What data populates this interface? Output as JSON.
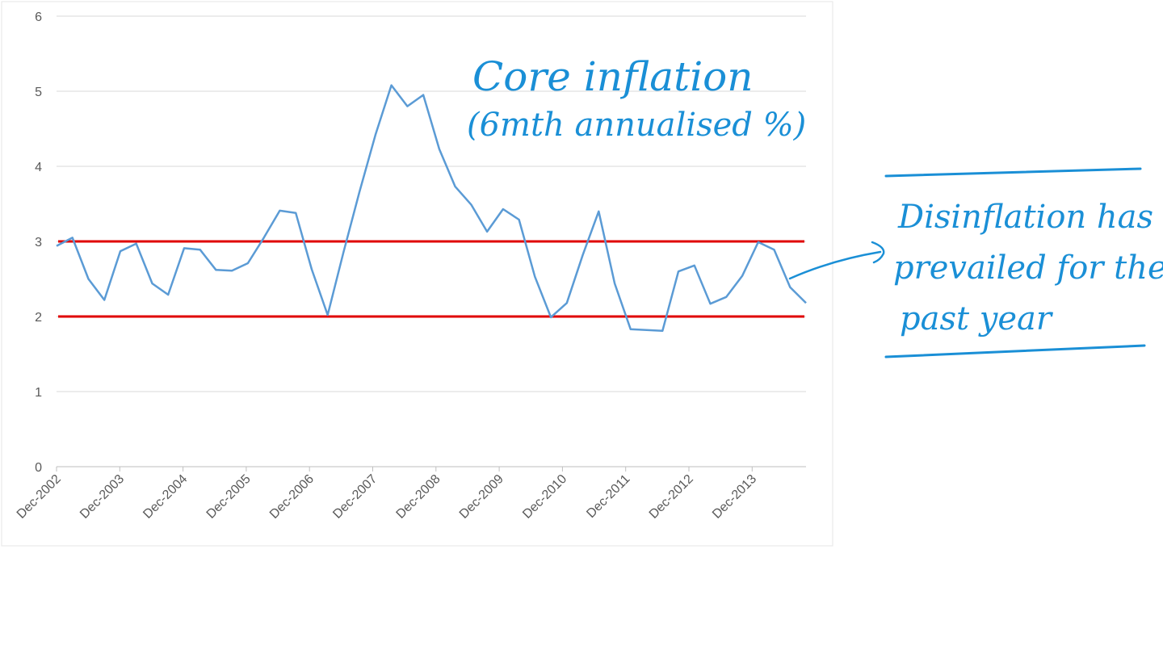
{
  "chart_data": {
    "type": "line",
    "ylim": [
      0,
      6
    ],
    "y_ticks": [
      "0",
      "1",
      "2",
      "3",
      "4",
      "5",
      "6"
    ],
    "x_tick_labels": [
      "Dec-2002",
      "Dec-2003",
      "Dec-2004",
      "Dec-2005",
      "Dec-2006",
      "Dec-2007",
      "Dec-2008",
      "Dec-2009",
      "Dec-2010",
      "Dec-2011",
      "Dec-2012",
      "Dec-2013"
    ],
    "grid": true,
    "series": [
      {
        "color": "#5b9bd5",
        "values": [
          2.94,
          3.05,
          2.5,
          2.22,
          2.87,
          2.97,
          2.44,
          2.29,
          2.91,
          2.89,
          2.62,
          2.61,
          2.71,
          3.05,
          3.41,
          3.38,
          2.63,
          2.02,
          2.86,
          3.66,
          4.42,
          5.08,
          4.8,
          4.95,
          4.23,
          3.73,
          3.49,
          3.13,
          3.43,
          3.29,
          2.53,
          1.99,
          2.18,
          2.82,
          3.4,
          2.44,
          1.83,
          1.82,
          1.81,
          2.6,
          2.68,
          2.17,
          2.26,
          2.54,
          2.99,
          2.89,
          2.39,
          2.18
        ]
      }
    ],
    "reference_lines": [
      {
        "value": 3,
        "color": "#e00000"
      },
      {
        "value": 2,
        "color": "#e00000"
      }
    ],
    "annotations": {
      "title_line1": "Core inflation",
      "title_line2": "(6mth annualised %)",
      "note_line1": "Disinflation has",
      "note_line2": "prevailed for the",
      "note_line3": "past year"
    },
    "annotation_color": "#1a8fd6"
  }
}
